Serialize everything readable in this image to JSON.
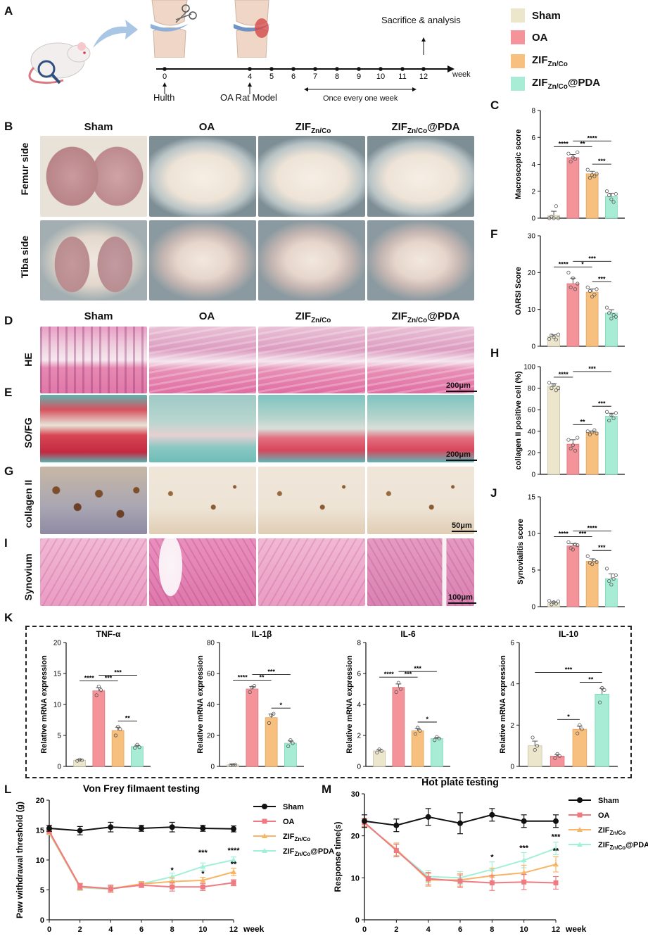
{
  "letters": {
    "a": "A",
    "b": "B",
    "c": "C",
    "d": "D",
    "e": "E",
    "f": "F",
    "g": "G",
    "h": "H",
    "i": "I",
    "j": "J",
    "k": "K",
    "l": "L",
    "m": "M"
  },
  "colors": {
    "sham": "#ece6cd",
    "oa": "#f4949a",
    "zif": "#f8c07e",
    "zifpda": "#a8ecd6",
    "shamline": "#111111",
    "oaline": "#ef7b82",
    "zifline": "#f7b565",
    "zifpdaline": "#a3f0da"
  },
  "legend": {
    "items": [
      {
        "name": "Sham",
        "sub": "",
        "tail": ""
      },
      {
        "name": "OA",
        "sub": "",
        "tail": ""
      },
      {
        "name": "ZIF",
        "sub": "Zn/Co",
        "tail": ""
      },
      {
        "name": "ZIF",
        "sub": "Zn/Co",
        "tail": "@PDA"
      }
    ]
  },
  "timeline": {
    "ticks": [
      "0",
      "4",
      "5",
      "6",
      "7",
      "8",
      "9",
      "10",
      "11",
      "12"
    ],
    "unit": "week",
    "hulth": "Hulth",
    "model": "OA Rat Model",
    "once": "Once every one week",
    "sacrifice": "Sacrifice & analysis"
  },
  "groups": {
    "sham": "Sham",
    "oa": "OA",
    "zif": "ZIF",
    "zif_sub": "Zn/Co",
    "pda_tail": "@PDA"
  },
  "rows": {
    "femur": "Femur side",
    "tiba": "Tiba side",
    "he": "HE",
    "sofg": "SO/FG",
    "col2": "collagen II",
    "syn": "Synovium"
  },
  "scalebars": {
    "he": "200μm",
    "sofg": "200μm",
    "col2": "50μm",
    "syn": "100μm"
  },
  "chart_data": [
    {
      "id": "C",
      "type": "bar",
      "categories": [
        "Sham",
        "OA",
        "ZIF Zn/Co",
        "ZIF Zn/Co@PDA"
      ],
      "values": [
        0.2,
        4.5,
        3.3,
        1.6
      ],
      "ylabel": "Macroscopic score",
      "ylim": [
        0,
        8
      ],
      "yticks": [
        0,
        2,
        4,
        6,
        8
      ],
      "points": [
        [
          0,
          0.1,
          0,
          0.9,
          0
        ],
        [
          4.8,
          4.2,
          4.5,
          4.4,
          4.9
        ],
        [
          3.6,
          3.0,
          3.2,
          3.1,
          3.3
        ],
        [
          2.0,
          1.7,
          1.4,
          1.2,
          1.8
        ]
      ],
      "sig": [
        {
          "a": 0,
          "b": 1,
          "label": "****"
        },
        {
          "a": 1,
          "b": 2,
          "label": "**"
        },
        {
          "a": 1,
          "b": 3,
          "label": "****"
        },
        {
          "a": 2,
          "b": 3,
          "label": "***"
        }
      ]
    },
    {
      "id": "F",
      "type": "bar",
      "categories": [
        "Sham",
        "OA",
        "ZIF Zn/Co",
        "ZIF Zn/Co@PDA"
      ],
      "values": [
        2.6,
        17,
        14.7,
        9
      ],
      "ylabel": "OARSI Score",
      "ylim": [
        0,
        30
      ],
      "yticks": [
        0,
        10,
        20,
        30
      ],
      "points": [
        [
          2.0,
          3.0,
          2.5,
          1.8,
          3.2
        ],
        [
          20,
          16,
          18.5,
          15.5,
          17
        ],
        [
          16,
          15,
          13.5,
          14,
          15.5
        ],
        [
          10.5,
          9,
          7.5,
          8.5,
          8
        ]
      ],
      "sig": [
        {
          "a": 0,
          "b": 1,
          "label": "****"
        },
        {
          "a": 1,
          "b": 2,
          "label": "*"
        },
        {
          "a": 1,
          "b": 3,
          "label": "***"
        },
        {
          "a": 2,
          "b": 3,
          "label": "***"
        }
      ]
    },
    {
      "id": "H",
      "type": "bar",
      "categories": [
        "Sham",
        "OA",
        "ZIF Zn/Co",
        "ZIF Zn/Co@PDA"
      ],
      "values": [
        82,
        28,
        39,
        54
      ],
      "ylabel": "collagen II positive cell (%)",
      "ylim": [
        0,
        100
      ],
      "yticks": [
        0,
        20,
        40,
        60,
        80,
        100
      ],
      "points": [
        [
          85,
          80,
          83,
          78,
          80
        ],
        [
          32,
          24,
          27,
          22,
          34
        ],
        [
          40,
          37,
          39,
          41,
          38
        ],
        [
          58,
          50,
          55,
          52,
          57
        ]
      ],
      "sig": [
        {
          "a": 0,
          "b": 1,
          "label": "****"
        },
        {
          "a": 1,
          "b": 2,
          "label": "**"
        },
        {
          "a": 1,
          "b": 3,
          "label": "***"
        },
        {
          "a": 2,
          "b": 3,
          "label": "***"
        }
      ]
    },
    {
      "id": "J",
      "type": "bar",
      "categories": [
        "Sham",
        "OA",
        "ZIF Zn/Co",
        "ZIF Zn/Co@PDA"
      ],
      "values": [
        0.5,
        8.3,
        6.2,
        3.8
      ],
      "ylabel": "Synovialitis score",
      "ylim": [
        0,
        15
      ],
      "yticks": [
        0,
        5,
        10,
        15
      ],
      "points": [
        [
          0.8,
          0.3,
          0.6,
          0.4,
          0.7
        ],
        [
          8.8,
          8.0,
          7.8,
          8.5,
          8.4
        ],
        [
          6.9,
          6.0,
          5.8,
          6.3,
          6.1
        ],
        [
          5.2,
          3.5,
          3.0,
          3.8,
          4.3
        ]
      ],
      "sig": [
        {
          "a": 0,
          "b": 1,
          "label": "****"
        },
        {
          "a": 1,
          "b": 2,
          "label": "***"
        },
        {
          "a": 1,
          "b": 3,
          "label": "****"
        },
        {
          "a": 2,
          "b": 3,
          "label": "***"
        }
      ]
    },
    {
      "id": "K1",
      "type": "bar",
      "title": "TNF-α",
      "categories": [
        "Sham",
        "OA",
        "ZIF Zn/Co",
        "ZIF Zn/Co@PDA"
      ],
      "values": [
        1,
        12.2,
        5.8,
        3.2
      ],
      "ylabel": "Relative mRNA expression",
      "ylim": [
        0,
        20
      ],
      "yticks": [
        0,
        5,
        10,
        15,
        20
      ],
      "points": [
        [
          0.9,
          1.1,
          1.0
        ],
        [
          11.5,
          12.9,
          12.3
        ],
        [
          5.0,
          6.4,
          6.0
        ],
        [
          3.0,
          3.5,
          3.1
        ]
      ],
      "sig": [
        {
          "a": 0,
          "b": 1,
          "label": "****"
        },
        {
          "a": 1,
          "b": 2,
          "label": "***"
        },
        {
          "a": 1,
          "b": 3,
          "label": "***"
        },
        {
          "a": 2,
          "b": 3,
          "label": "**"
        }
      ]
    },
    {
      "id": "K2",
      "type": "bar",
      "title": "IL-1β",
      "categories": [
        "Sham",
        "OA",
        "ZIF Zn/Co",
        "ZIF Zn/Co@PDA"
      ],
      "values": [
        1,
        50,
        31.5,
        15
      ],
      "ylabel": "Relative mRNA expression",
      "ylim": [
        0,
        80
      ],
      "yticks": [
        0,
        20,
        40,
        60,
        80
      ],
      "points": [
        [
          0.8,
          1.0,
          1.2
        ],
        [
          48,
          51,
          52
        ],
        [
          28,
          33,
          34
        ],
        [
          13,
          17,
          15
        ]
      ],
      "sig": [
        {
          "a": 0,
          "b": 1,
          "label": "****"
        },
        {
          "a": 1,
          "b": 2,
          "label": "**"
        },
        {
          "a": 1,
          "b": 3,
          "label": "***"
        },
        {
          "a": 2,
          "b": 3,
          "label": "*"
        }
      ]
    },
    {
      "id": "K3",
      "type": "bar",
      "title": "IL-6",
      "categories": [
        "Sham",
        "OA",
        "ZIF Zn/Co",
        "ZIF Zn/Co@PDA"
      ],
      "values": [
        1,
        5.1,
        2.3,
        1.8
      ],
      "ylabel": "Relative mRNA expression",
      "ylim": [
        0,
        8
      ],
      "yticks": [
        0,
        2,
        4,
        6,
        8
      ],
      "points": [
        [
          0.9,
          1.1,
          1.0
        ],
        [
          4.8,
          5.4,
          5.0
        ],
        [
          2.1,
          2.5,
          2.3
        ],
        [
          1.7,
          1.9,
          1.8
        ]
      ],
      "sig": [
        {
          "a": 0,
          "b": 1,
          "label": "****"
        },
        {
          "a": 1,
          "b": 2,
          "label": "***"
        },
        {
          "a": 1,
          "b": 3,
          "label": "***"
        },
        {
          "a": 2,
          "b": 3,
          "label": "*"
        }
      ]
    },
    {
      "id": "K4",
      "type": "bar",
      "title": "IL-10",
      "categories": [
        "Sham",
        "OA",
        "ZIF Zn/Co",
        "ZIF Zn/Co@PDA"
      ],
      "values": [
        1,
        0.5,
        1.8,
        3.5
      ],
      "ylabel": "Relative mRNA expression",
      "ylim": [
        0,
        6
      ],
      "yticks": [
        0,
        2,
        4,
        6
      ],
      "points": [
        [
          1.4,
          0.8,
          1.0
        ],
        [
          0.4,
          0.6,
          0.5
        ],
        [
          1.6,
          2.0,
          1.8
        ],
        [
          3.1,
          3.8,
          3.7
        ]
      ],
      "sig": [
        {
          "a": 0,
          "b": 3,
          "label": "***"
        },
        {
          "a": 1,
          "b": 2,
          "label": "*"
        },
        {
          "a": 2,
          "b": 3,
          "label": "**"
        }
      ]
    },
    {
      "id": "L",
      "type": "line",
      "title": "Von Frey filmaent testing",
      "xlabel": "week",
      "ylabel": "Paw withdrawal threshold (g)",
      "x": [
        0,
        2,
        4,
        6,
        8,
        10,
        12
      ],
      "xlim": [
        0,
        12
      ],
      "ylim": [
        0,
        20
      ],
      "yticks": [
        0,
        5,
        10,
        15,
        20
      ],
      "series": [
        {
          "name": "Sham",
          "values": [
            15.3,
            14.9,
            15.5,
            15.3,
            15.5,
            15.3,
            15.2
          ],
          "err": [
            0.5,
            0.7,
            0.8,
            0.5,
            0.8,
            0.5,
            0.5
          ]
        },
        {
          "name": "OA",
          "values": [
            14.8,
            5.6,
            5.2,
            5.8,
            5.5,
            5.5,
            6.2
          ],
          "err": [
            0.3,
            0.5,
            0.6,
            0.4,
            0.7,
            0.6,
            0.5
          ]
        },
        {
          "name": "ZIFZn/Co",
          "values": [
            14.6,
            5.5,
            5.2,
            6.0,
            6.4,
            6.6,
            8.0
          ],
          "err": [
            0.3,
            0.5,
            0.5,
            0.4,
            0.6,
            0.5,
            0.6
          ]
        },
        {
          "name": "ZIFZn/Co@PDA",
          "values": [
            14.5,
            5.4,
            5.1,
            6.0,
            7.2,
            8.9,
            10.0
          ],
          "err": [
            0.3,
            0.5,
            0.5,
            0.4,
            0.6,
            0.6,
            0.5
          ]
        }
      ],
      "sig": [
        {
          "x": 8,
          "y": 7.9,
          "label": "*"
        },
        {
          "x": 10,
          "y": 10.8,
          "label": "***"
        },
        {
          "x": 10,
          "y": 7.3,
          "label": "*"
        },
        {
          "x": 12,
          "y": 11.2,
          "label": "****"
        },
        {
          "x": 12,
          "y": 8.9,
          "label": "**"
        }
      ]
    },
    {
      "id": "M",
      "type": "line",
      "title": "Hot plate testing",
      "xlabel": "week",
      "ylabel": "Response time(s)",
      "x": [
        0,
        2,
        4,
        6,
        8,
        10,
        12
      ],
      "xlim": [
        0,
        12
      ],
      "ylim": [
        0,
        30
      ],
      "yticks": [
        0,
        10,
        20,
        30
      ],
      "series": [
        {
          "name": "Sham",
          "values": [
            23.5,
            22.5,
            24.5,
            23,
            25,
            23.5,
            23.5
          ],
          "err": [
            1.5,
            1.5,
            2.0,
            2.5,
            1.5,
            1.5,
            1.5
          ]
        },
        {
          "name": "OA",
          "values": [
            23.2,
            16.5,
            9.8,
            9.2,
            8.8,
            9.0,
            8.8
          ],
          "err": [
            1.0,
            1.5,
            1.5,
            1.5,
            1.8,
            1.8,
            1.5
          ]
        },
        {
          "name": "ZIFZn/Co",
          "values": [
            23.0,
            16.8,
            9.5,
            9.5,
            10.5,
            11.2,
            13.2
          ],
          "err": [
            1.0,
            1.5,
            1.5,
            1.5,
            1.8,
            1.8,
            1.8
          ]
        },
        {
          "name": "ZIFZn/Co@PDA",
          "values": [
            23.0,
            16.6,
            10.3,
            10.0,
            12.0,
            14.2,
            17.0
          ],
          "err": [
            1.0,
            1.5,
            1.5,
            1.5,
            1.8,
            1.8,
            1.5
          ]
        }
      ],
      "sig": [
        {
          "x": 8,
          "y": 14.3,
          "label": "*"
        },
        {
          "x": 10,
          "y": 16.5,
          "label": "***"
        },
        {
          "x": 12,
          "y": 19.2,
          "label": "***"
        },
        {
          "x": 12,
          "y": 15.8,
          "label": "**"
        }
      ]
    }
  ]
}
